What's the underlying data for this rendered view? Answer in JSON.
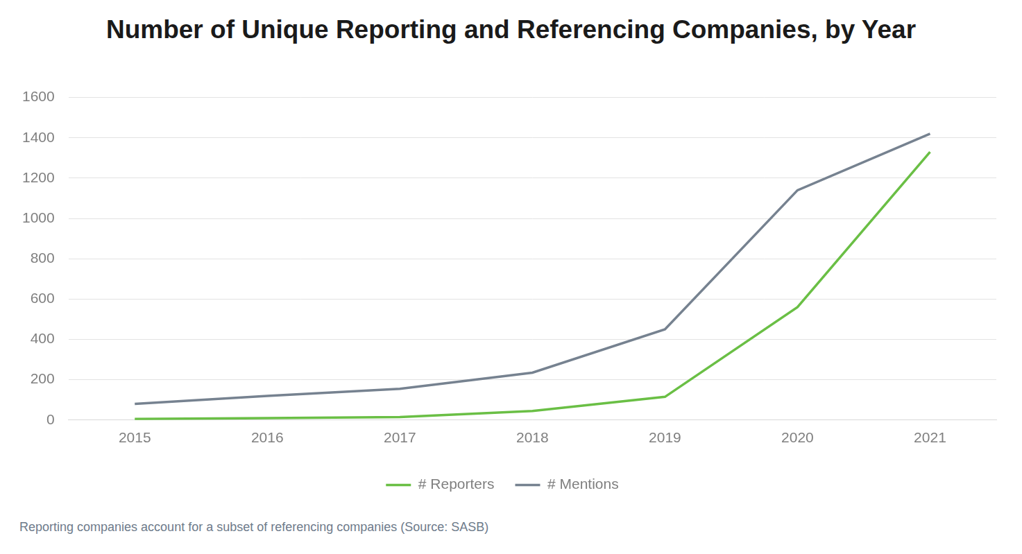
{
  "chart_data": {
    "type": "line",
    "title": "Number of Unique Reporting and Referencing Companies, by Year",
    "footnote": "Reporting companies account for a subset of referencing companies (Source: SASB)",
    "categories": [
      "2015",
      "2016",
      "2017",
      "2018",
      "2019",
      "2020",
      "2021"
    ],
    "series": [
      {
        "name": "# Reporters",
        "color": "#6abf45",
        "values": [
          5,
          10,
          15,
          45,
          115,
          560,
          1330
        ]
      },
      {
        "name": "# Mentions",
        "color": "#768290",
        "values": [
          80,
          120,
          155,
          235,
          450,
          1140,
          1420
        ]
      }
    ],
    "ylim": [
      0,
      1600
    ],
    "yticks": [
      0,
      200,
      400,
      600,
      800,
      1000,
      1200,
      1400,
      1600
    ],
    "grid": true,
    "legend": "bottom"
  }
}
